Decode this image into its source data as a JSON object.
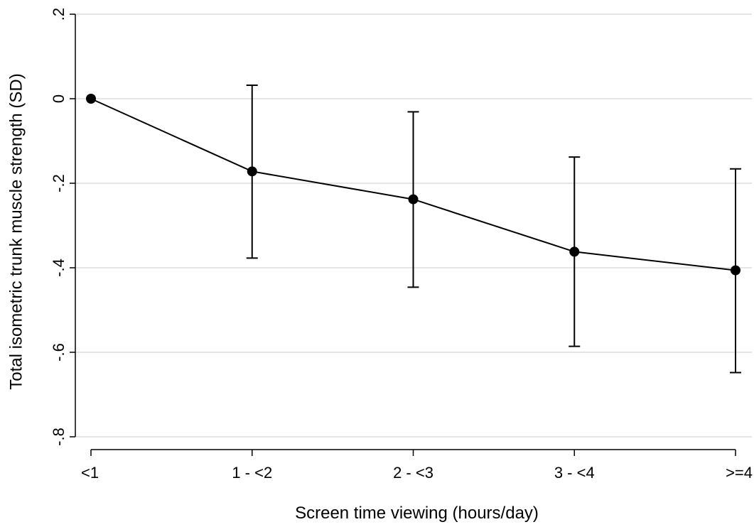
{
  "chart_data": {
    "type": "line",
    "xlabel": "Screen time viewing (hours/day)",
    "ylabel": "Total isometric trunk muscle strength (SD)",
    "categories": [
      "<1",
      "1 - <2",
      "2 - <3",
      "3 - <4",
      ">=4"
    ],
    "series": [
      {
        "values": [
          0,
          -0.172,
          -0.238,
          -0.362,
          -0.406
        ],
        "ci_lower": [
          null,
          -0.377,
          -0.446,
          -0.586,
          -0.648
        ],
        "ci_upper": [
          null,
          0.032,
          -0.031,
          -0.138,
          -0.166
        ]
      }
    ],
    "yticks": [
      ".2",
      "0",
      "-.2",
      "-.4",
      "-.6",
      "-.8"
    ],
    "ytick_values": [
      0.2,
      0,
      -0.2,
      -0.4,
      -0.6,
      -0.8
    ],
    "ylim": [
      -0.8,
      0.2
    ],
    "grid": true,
    "color": "#000000",
    "gridcolor": "#e5e5e5"
  }
}
